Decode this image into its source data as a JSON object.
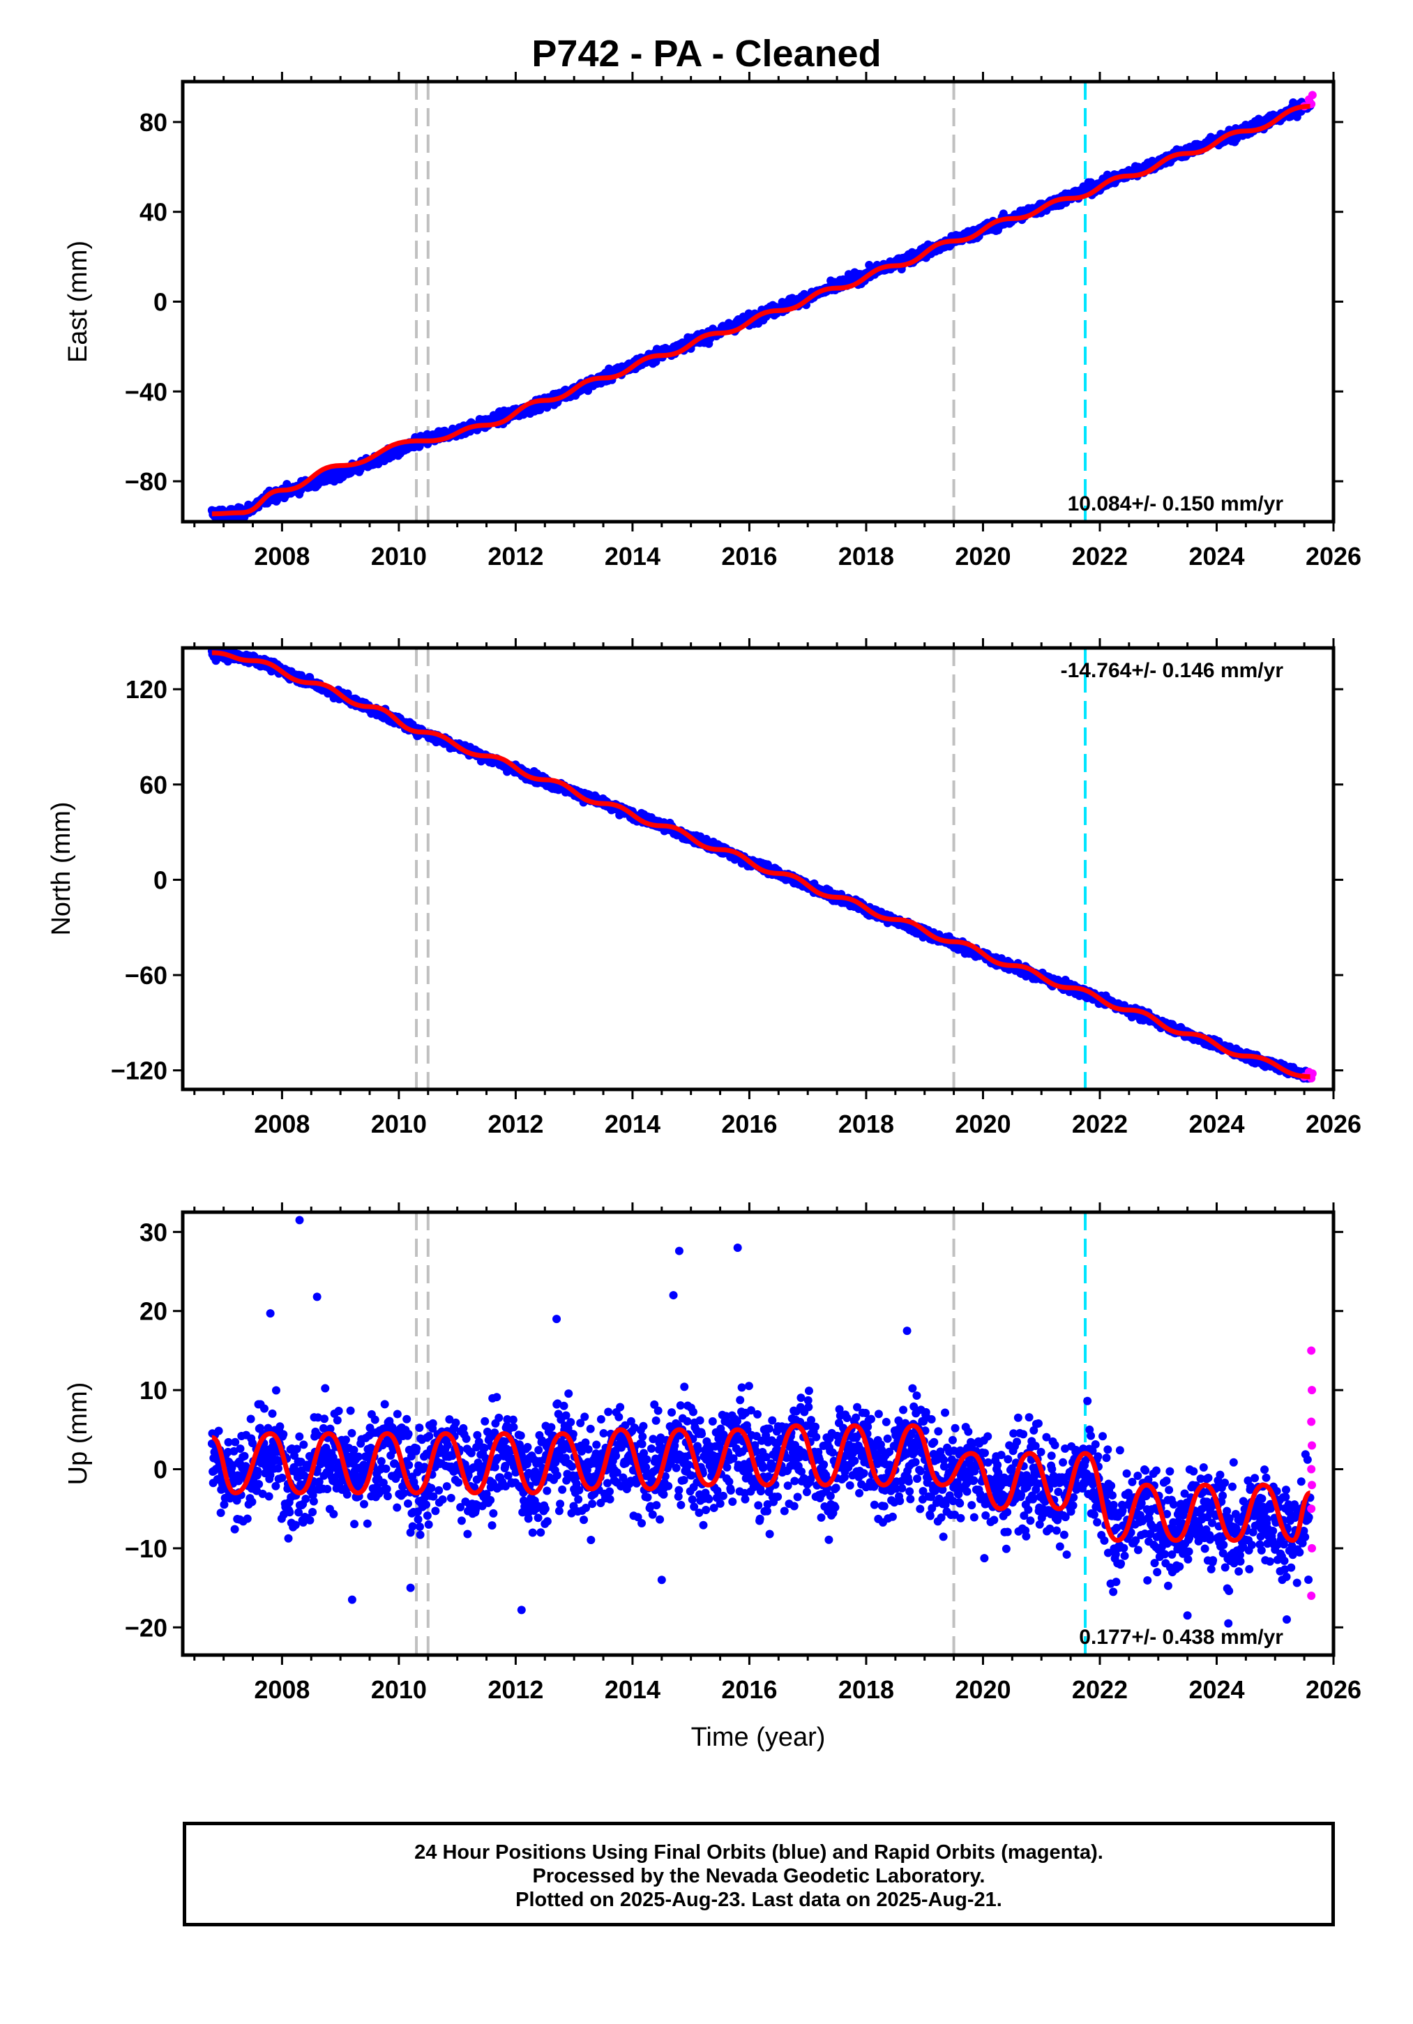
{
  "title": "P742  - PA - Cleaned",
  "footer": {
    "line1": "24 Hour Positions Using Final Orbits (blue) and Rapid Orbits (magenta).",
    "line2": "Processed by the Nevada Geodetic Laboratory.",
    "line3": "Plotted on 2025-Aug-23. Last data on 2025-Aug-21."
  },
  "chart_data": [
    {
      "type": "scatter",
      "ylabel": "East (mm)",
      "xlabel": "",
      "xlim": [
        2006.3,
        2026.0
      ],
      "ylim": [
        -98,
        98
      ],
      "xticks": [
        2008,
        2010,
        2012,
        2014,
        2016,
        2018,
        2020,
        2022,
        2024,
        2026
      ],
      "yticks": [
        -80,
        -40,
        0,
        40,
        80
      ],
      "rate": "10.084+/- 0.150 mm/yr",
      "rate_position": "bottom-right",
      "vlines_gray": [
        2010.3,
        2010.5,
        2019.5
      ],
      "vlines_cyan": [
        2021.75
      ],
      "series": [
        {
          "values": [
            [
              2006.8,
              -94.5
            ],
            [
              2007.3,
              -94.5
            ],
            [
              2007.8,
              -87.0
            ],
            [
              2008.5,
              -81.0
            ],
            [
              2009.5,
              -72.0
            ],
            [
              2010.4,
              -62.0
            ],
            [
              2011.5,
              -54.0
            ],
            [
              2012.5,
              -45.0
            ],
            [
              2013.5,
              -34.0
            ],
            [
              2014.5,
              -23.0
            ],
            [
              2015.5,
              -13.0
            ],
            [
              2016.5,
              -3.0
            ],
            [
              2017.5,
              7.0
            ],
            [
              2018.5,
              17.0
            ],
            [
              2019.5,
              27.0
            ],
            [
              2020.5,
              37.0
            ],
            [
              2021.5,
              47.0
            ],
            [
              2022.5,
              57.0
            ],
            [
              2023.5,
              67.0
            ],
            [
              2024.5,
              76.0
            ],
            [
              2025.6,
              88.0
            ]
          ]
        },
        {
          "values": [
            [
              2025.5,
              87.0
            ],
            [
              2025.58,
              90.0
            ],
            [
              2025.62,
              88.0
            ],
            [
              2025.64,
              92.0
            ]
          ]
        },
        {
          "values": [
            [
              2006.8,
              -94.5
            ],
            [
              2007.3,
              -94.0
            ],
            [
              2008.0,
              -84.0
            ],
            [
              2009.0,
              -73.0
            ],
            [
              2010.3,
              -62.0
            ],
            [
              2010.5,
              -62.0
            ],
            [
              2011.5,
              -55.0
            ],
            [
              2012.5,
              -44.0
            ],
            [
              2013.5,
              -34.0
            ],
            [
              2014.5,
              -24.0
            ],
            [
              2015.5,
              -14.0
            ],
            [
              2016.5,
              -4.0
            ],
            [
              2017.5,
              6.0
            ],
            [
              2018.5,
              16.0
            ],
            [
              2019.5,
              27.0
            ],
            [
              2020.5,
              37.0
            ],
            [
              2021.5,
              46.0
            ],
            [
              2022.5,
              56.0
            ],
            [
              2023.5,
              66.0
            ],
            [
              2024.5,
              76.0
            ],
            [
              2025.6,
              87.0
            ]
          ]
        }
      ]
    },
    {
      "type": "scatter",
      "ylabel": "North (mm)",
      "xlabel": "",
      "xlim": [
        2006.3,
        2026.0
      ],
      "ylim": [
        -132,
        146
      ],
      "xticks": [
        2008,
        2010,
        2012,
        2014,
        2016,
        2018,
        2020,
        2022,
        2024,
        2026
      ],
      "yticks": [
        -120,
        -60,
        0,
        60,
        120
      ],
      "rate": "-14.764+/- 0.146 mm/yr",
      "rate_position": "top-right",
      "vlines_gray": [
        2010.3,
        2010.5,
        2019.5
      ],
      "vlines_cyan": [
        2021.75
      ],
      "series": [
        {
          "values": [
            [
              2006.8,
              142.0
            ],
            [
              2007.5,
              139.0
            ],
            [
              2008.5,
              124.0
            ],
            [
              2009.5,
              108.0
            ],
            [
              2010.4,
              93.0
            ],
            [
              2011.5,
              77.0
            ],
            [
              2012.5,
              62.0
            ],
            [
              2013.5,
              48.0
            ],
            [
              2014.5,
              34.0
            ],
            [
              2015.5,
              19.0
            ],
            [
              2016.5,
              4.0
            ],
            [
              2017.5,
              -11.0
            ],
            [
              2018.5,
              -26.0
            ],
            [
              2019.5,
              -40.0
            ],
            [
              2020.5,
              -55.0
            ],
            [
              2021.5,
              -68.0
            ],
            [
              2022.5,
              -82.0
            ],
            [
              2023.5,
              -97.0
            ],
            [
              2024.5,
              -111.0
            ],
            [
              2025.6,
              -124.0
            ]
          ]
        },
        {
          "values": [
            [
              2025.5,
              -124.0
            ],
            [
              2025.58,
              -121.0
            ],
            [
              2025.62,
              -125.0
            ],
            [
              2025.64,
              -122.0
            ]
          ]
        },
        {
          "values": [
            [
              2006.8,
              143.0
            ],
            [
              2007.5,
              138.0
            ],
            [
              2008.5,
              124.0
            ],
            [
              2009.5,
              109.0
            ],
            [
              2010.4,
              93.0
            ],
            [
              2011.5,
              78.0
            ],
            [
              2012.5,
              63.0
            ],
            [
              2013.5,
              48.0
            ],
            [
              2014.5,
              34.0
            ],
            [
              2015.5,
              19.0
            ],
            [
              2016.5,
              4.0
            ],
            [
              2017.5,
              -11.0
            ],
            [
              2018.5,
              -25.0
            ],
            [
              2019.5,
              -39.0
            ],
            [
              2020.5,
              -54.0
            ],
            [
              2021.5,
              -68.0
            ],
            [
              2022.5,
              -82.0
            ],
            [
              2023.5,
              -97.0
            ],
            [
              2024.5,
              -111.0
            ],
            [
              2025.6,
              -124.0
            ]
          ]
        }
      ]
    },
    {
      "type": "scatter",
      "ylabel": "Up (mm)",
      "xlabel": "Time (year)",
      "xlim": [
        2006.3,
        2026.0
      ],
      "ylim": [
        -23.5,
        32.5
      ],
      "xticks": [
        2008,
        2010,
        2012,
        2014,
        2016,
        2018,
        2020,
        2022,
        2024,
        2026
      ],
      "yticks": [
        -20,
        -10,
        0,
        10,
        20,
        30
      ],
      "rate": "0.177+/- 0.438 mm/yr",
      "rate_position": "bottom-right",
      "vlines_gray": [
        2010.3,
        2010.5,
        2019.5
      ],
      "vlines_cyan": [
        2021.75
      ],
      "outliers": [
        [
          2008.3,
          31.5
        ],
        [
          2008.6,
          21.8
        ],
        [
          2007.8,
          19.7
        ],
        [
          2012.7,
          19.0
        ],
        [
          2014.8,
          27.6
        ],
        [
          2014.7,
          22.0
        ],
        [
          2015.8,
          28.0
        ],
        [
          2018.7,
          17.5
        ],
        [
          2009.2,
          -16.5
        ],
        [
          2012.1,
          -17.8
        ],
        [
          2010.2,
          -15.0
        ],
        [
          2014.5,
          -14.0
        ],
        [
          2023.5,
          -18.5
        ],
        [
          2024.2,
          -19.5
        ],
        [
          2025.2,
          -19.0
        ]
      ],
      "series": [
        {
          "values": [
            [
              2006.8,
              0.2
            ],
            [
              2007.5,
              0.0
            ],
            [
              2009.0,
              0.0
            ],
            [
              2012.0,
              0.0
            ],
            [
              2015.0,
              0.5
            ],
            [
              2018.0,
              0.5
            ],
            [
              2020.0,
              -0.5
            ],
            [
              2021.5,
              -0.5
            ],
            [
              2022.5,
              -3.0
            ],
            [
              2024.0,
              -3.5
            ],
            [
              2025.6,
              -3.5
            ]
          ]
        },
        {
          "values": [
            [
              2025.62,
              15.0
            ],
            [
              2025.63,
              10.0
            ],
            [
              2025.62,
              6.0
            ],
            [
              2025.63,
              3.0
            ],
            [
              2025.62,
              0.0
            ],
            [
              2025.63,
              -2.0
            ],
            [
              2025.62,
              -5.0
            ],
            [
              2025.63,
              -10.0
            ],
            [
              2025.62,
              -16.0
            ]
          ]
        },
        {
          "values": [
            [
              2006.8,
              4.0
            ],
            [
              2007.2,
              -3.0
            ],
            [
              2007.8,
              4.5
            ],
            [
              2008.3,
              -3.0
            ],
            [
              2008.8,
              4.5
            ],
            [
              2009.3,
              -3.0
            ],
            [
              2009.8,
              4.5
            ],
            [
              2010.3,
              -3.0
            ],
            [
              2010.8,
              4.5
            ],
            [
              2011.3,
              -3.0
            ],
            [
              2011.8,
              4.5
            ],
            [
              2012.3,
              -3.0
            ],
            [
              2012.8,
              4.5
            ],
            [
              2013.3,
              -2.5
            ],
            [
              2013.8,
              5.0
            ],
            [
              2014.3,
              -2.5
            ],
            [
              2014.8,
              5.0
            ],
            [
              2015.3,
              -2.0
            ],
            [
              2015.8,
              5.0
            ],
            [
              2016.3,
              -2.0
            ],
            [
              2016.8,
              5.5
            ],
            [
              2017.3,
              -2.0
            ],
            [
              2017.8,
              5.5
            ],
            [
              2018.3,
              -2.0
            ],
            [
              2018.8,
              5.5
            ],
            [
              2019.3,
              -2.0
            ],
            [
              2019.8,
              2.0
            ],
            [
              2020.3,
              -5.0
            ],
            [
              2020.8,
              2.0
            ],
            [
              2021.3,
              -5.0
            ],
            [
              2021.75,
              2.0
            ],
            [
              2022.3,
              -9.0
            ],
            [
              2022.8,
              -2.0
            ],
            [
              2023.3,
              -9.0
            ],
            [
              2023.8,
              -2.0
            ],
            [
              2024.3,
              -9.0
            ],
            [
              2024.8,
              -2.0
            ],
            [
              2025.3,
              -9.0
            ],
            [
              2025.6,
              -3.0
            ]
          ]
        }
      ]
    }
  ]
}
